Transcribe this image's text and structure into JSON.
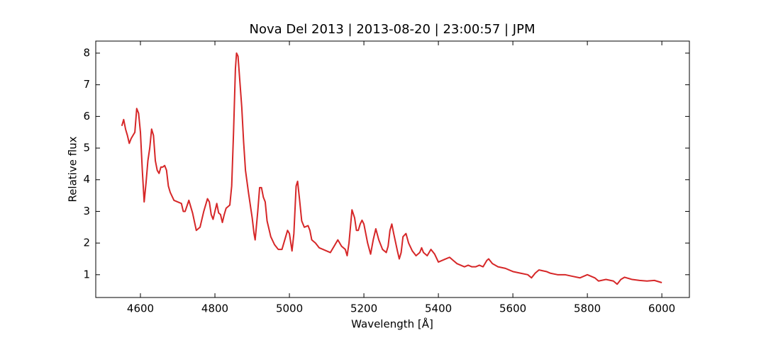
{
  "chart_data": {
    "type": "line",
    "title": "Nova Del 2013 | 2013-08-20 | 23:00:57 | JPM",
    "x_label": "Wavelength [Å]",
    "y_label": "Relative flux",
    "color": "#d62728",
    "xlim": [
      4480,
      6074
    ],
    "ylim": [
      0.28,
      8.38
    ],
    "xticks": [
      4600,
      4800,
      5000,
      5200,
      5400,
      5600,
      5800,
      6000
    ],
    "yticks": [
      1,
      2,
      3,
      4,
      5,
      6,
      7,
      8
    ],
    "x": [
      4550,
      4555,
      4560,
      4565,
      4570,
      4575,
      4580,
      4585,
      4590,
      4595,
      4600,
      4605,
      4610,
      4615,
      4620,
      4625,
      4630,
      4635,
      4640,
      4645,
      4650,
      4655,
      4660,
      4665,
      4670,
      4675,
      4680,
      4690,
      4700,
      4710,
      4715,
      4720,
      4730,
      4740,
      4750,
      4760,
      4770,
      4780,
      4785,
      4790,
      4795,
      4800,
      4805,
      4810,
      4815,
      4820,
      4825,
      4830,
      4840,
      4845,
      4850,
      4855,
      4858,
      4862,
      4867,
      4872,
      4877,
      4882,
      4890,
      4900,
      4905,
      4908,
      4915,
      4920,
      4925,
      4930,
      4935,
      4940,
      4950,
      4960,
      4970,
      4980,
      4990,
      4995,
      5000,
      5007,
      5012,
      5018,
      5022,
      5027,
      5033,
      5040,
      5050,
      5055,
      5060,
      5070,
      5080,
      5090,
      5100,
      5110,
      5120,
      5130,
      5140,
      5150,
      5155,
      5160,
      5168,
      5175,
      5180,
      5185,
      5190,
      5195,
      5200,
      5210,
      5218,
      5225,
      5232,
      5240,
      5250,
      5260,
      5265,
      5270,
      5275,
      5280,
      5290,
      5295,
      5300,
      5305,
      5313,
      5320,
      5330,
      5340,
      5350,
      5355,
      5360,
      5370,
      5380,
      5390,
      5400,
      5410,
      5420,
      5430,
      5440,
      5450,
      5460,
      5470,
      5480,
      5490,
      5500,
      5510,
      5520,
      5530,
      5535,
      5545,
      5560,
      5580,
      5600,
      5620,
      5640,
      5650,
      5660,
      5670,
      5690,
      5700,
      5720,
      5740,
      5760,
      5780,
      5800,
      5820,
      5830,
      5850,
      5870,
      5880,
      5890,
      5900,
      5920,
      5940,
      5960,
      5980,
      6000
    ],
    "values": [
      5.7,
      5.9,
      5.6,
      5.4,
      5.15,
      5.3,
      5.4,
      5.5,
      6.25,
      6.1,
      5.5,
      4.3,
      3.3,
      3.9,
      4.6,
      5.0,
      5.6,
      5.4,
      4.6,
      4.3,
      4.2,
      4.4,
      4.4,
      4.45,
      4.3,
      3.8,
      3.6,
      3.35,
      3.3,
      3.25,
      3.0,
      3.0,
      3.35,
      2.95,
      2.4,
      2.5,
      3.0,
      3.4,
      3.3,
      2.9,
      2.75,
      3.0,
      3.25,
      2.95,
      2.9,
      2.65,
      2.9,
      3.1,
      3.2,
      3.8,
      5.5,
      7.5,
      8.0,
      7.9,
      7.1,
      6.3,
      5.2,
      4.3,
      3.6,
      2.8,
      2.3,
      2.1,
      3.0,
      3.75,
      3.75,
      3.45,
      3.3,
      2.7,
      2.2,
      1.95,
      1.8,
      1.8,
      2.2,
      2.4,
      2.3,
      1.75,
      2.3,
      3.8,
      3.95,
      3.4,
      2.7,
      2.5,
      2.55,
      2.4,
      2.1,
      2.0,
      1.85,
      1.8,
      1.75,
      1.7,
      1.9,
      2.1,
      1.9,
      1.8,
      1.6,
      2.0,
      3.05,
      2.8,
      2.4,
      2.4,
      2.6,
      2.72,
      2.6,
      2.0,
      1.65,
      2.1,
      2.45,
      2.1,
      1.8,
      1.7,
      1.9,
      2.4,
      2.6,
      2.3,
      1.75,
      1.5,
      1.7,
      2.2,
      2.3,
      2.0,
      1.75,
      1.6,
      1.7,
      1.85,
      1.7,
      1.6,
      1.8,
      1.65,
      1.4,
      1.45,
      1.5,
      1.55,
      1.45,
      1.35,
      1.3,
      1.25,
      1.3,
      1.25,
      1.25,
      1.3,
      1.25,
      1.45,
      1.5,
      1.35,
      1.25,
      1.2,
      1.1,
      1.05,
      1.0,
      0.9,
      1.05,
      1.15,
      1.1,
      1.05,
      1.0,
      1.0,
      0.95,
      0.9,
      1.0,
      0.9,
      0.8,
      0.85,
      0.8,
      0.7,
      0.85,
      0.92,
      0.85,
      0.82,
      0.8,
      0.82,
      0.75
    ]
  }
}
